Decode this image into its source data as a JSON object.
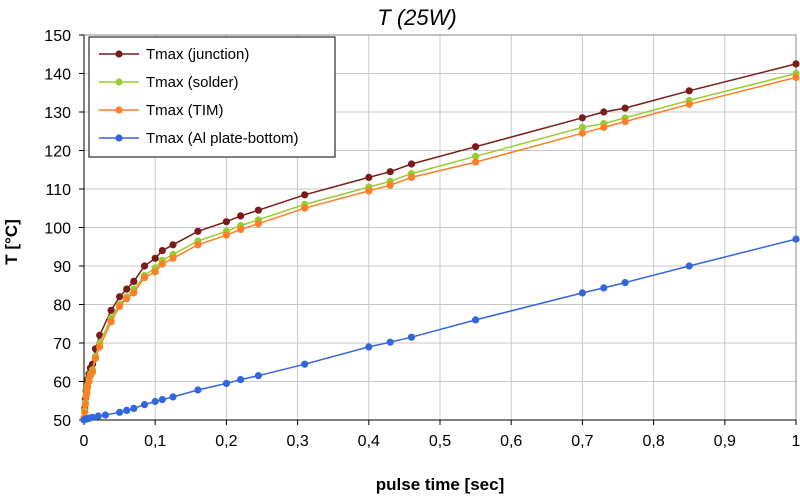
{
  "chart_data": {
    "type": "line",
    "title": "T (25W)",
    "xlabel": "pulse time [sec]",
    "ylabel": "T [°C]",
    "xlim": [
      0,
      1
    ],
    "ylim": [
      50,
      150
    ],
    "x_ticks": [
      0,
      0.1,
      0.2,
      0.3,
      0.4,
      0.5,
      0.6,
      0.7,
      0.8,
      0.9,
      1
    ],
    "x_tick_labels": [
      "0",
      "0,1",
      "0,2",
      "0,3",
      "0,4",
      "0,5",
      "0,6",
      "0,7",
      "0,8",
      "0,9",
      "1"
    ],
    "y_ticks": [
      50,
      60,
      70,
      80,
      90,
      100,
      110,
      120,
      130,
      140,
      150
    ],
    "y_tick_labels": [
      "50",
      "60",
      "70",
      "80",
      "90",
      "100",
      "110",
      "120",
      "130",
      "140",
      "150"
    ],
    "grid": true,
    "legend_position": "top-left",
    "series": [
      {
        "name": "Tmax (junction)",
        "color": "#7b1a1a",
        "points": [
          [
            0,
            50.5
          ],
          [
            0.001,
            53
          ],
          [
            0.002,
            55.5
          ],
          [
            0.003,
            57.5
          ],
          [
            0.004,
            59
          ],
          [
            0.005,
            60.5
          ],
          [
            0.007,
            62
          ],
          [
            0.009,
            63.5
          ],
          [
            0.012,
            64.5
          ],
          [
            0.016,
            68.5
          ],
          [
            0.022,
            72
          ],
          [
            0.038,
            78.5
          ],
          [
            0.05,
            82
          ],
          [
            0.06,
            84
          ],
          [
            0.07,
            86
          ],
          [
            0.085,
            90
          ],
          [
            0.1,
            92
          ],
          [
            0.11,
            94
          ],
          [
            0.125,
            95.5
          ],
          [
            0.16,
            99
          ],
          [
            0.2,
            101.5
          ],
          [
            0.22,
            103
          ],
          [
            0.245,
            104.5
          ],
          [
            0.31,
            108.5
          ],
          [
            0.4,
            113
          ],
          [
            0.43,
            114.5
          ],
          [
            0.46,
            116.5
          ],
          [
            0.55,
            121
          ],
          [
            0.7,
            128.5
          ],
          [
            0.73,
            130
          ],
          [
            0.76,
            131
          ],
          [
            0.85,
            135.5
          ],
          [
            1.0,
            142.5
          ]
        ]
      },
      {
        "name": "Tmax (solder)",
        "color": "#99cc33",
        "points": [
          [
            0,
            50.5
          ],
          [
            0.001,
            52.5
          ],
          [
            0.002,
            54.5
          ],
          [
            0.003,
            56.5
          ],
          [
            0.004,
            57.5
          ],
          [
            0.005,
            59
          ],
          [
            0.007,
            60.5
          ],
          [
            0.009,
            62
          ],
          [
            0.012,
            63
          ],
          [
            0.016,
            66.5
          ],
          [
            0.022,
            70
          ],
          [
            0.038,
            76.5
          ],
          [
            0.05,
            80
          ],
          [
            0.06,
            82
          ],
          [
            0.07,
            84
          ],
          [
            0.085,
            87.5
          ],
          [
            0.1,
            89.5
          ],
          [
            0.11,
            91.5
          ],
          [
            0.125,
            93
          ],
          [
            0.16,
            96.5
          ],
          [
            0.2,
            99
          ],
          [
            0.22,
            100.5
          ],
          [
            0.245,
            102
          ],
          [
            0.31,
            106
          ],
          [
            0.4,
            110.5
          ],
          [
            0.43,
            112
          ],
          [
            0.46,
            114
          ],
          [
            0.55,
            118.5
          ],
          [
            0.7,
            126
          ],
          [
            0.73,
            127
          ],
          [
            0.76,
            128.5
          ],
          [
            0.85,
            133
          ],
          [
            1.0,
            140
          ]
        ]
      },
      {
        "name": "Tmax (TIM)",
        "color": "#ff7f27",
        "points": [
          [
            0,
            50.5
          ],
          [
            0.001,
            52
          ],
          [
            0.002,
            54
          ],
          [
            0.003,
            56
          ],
          [
            0.004,
            57
          ],
          [
            0.005,
            58.5
          ],
          [
            0.007,
            60
          ],
          [
            0.009,
            61.5
          ],
          [
            0.012,
            62.5
          ],
          [
            0.016,
            66
          ],
          [
            0.022,
            69
          ],
          [
            0.038,
            75.5
          ],
          [
            0.05,
            79.5
          ],
          [
            0.06,
            81.5
          ],
          [
            0.07,
            83
          ],
          [
            0.085,
            87
          ],
          [
            0.1,
            88.5
          ],
          [
            0.11,
            90.5
          ],
          [
            0.125,
            92
          ],
          [
            0.16,
            95.5
          ],
          [
            0.2,
            98
          ],
          [
            0.22,
            99.5
          ],
          [
            0.245,
            101
          ],
          [
            0.31,
            105
          ],
          [
            0.4,
            109.5
          ],
          [
            0.43,
            111
          ],
          [
            0.46,
            113
          ],
          [
            0.55,
            117
          ],
          [
            0.7,
            124.5
          ],
          [
            0.73,
            126
          ],
          [
            0.76,
            127.5
          ],
          [
            0.85,
            132
          ],
          [
            1.0,
            139
          ]
        ]
      },
      {
        "name": "Tmax (Al plate-bottom)",
        "color": "#3366dd",
        "points": [
          [
            0,
            50
          ],
          [
            0.002,
            50.2
          ],
          [
            0.004,
            50.3
          ],
          [
            0.006,
            50.4
          ],
          [
            0.008,
            50.5
          ],
          [
            0.012,
            50.7
          ],
          [
            0.02,
            51
          ],
          [
            0.03,
            51.3
          ],
          [
            0.05,
            52
          ],
          [
            0.06,
            52.5
          ],
          [
            0.07,
            53
          ],
          [
            0.085,
            54
          ],
          [
            0.1,
            54.8
          ],
          [
            0.11,
            55.3
          ],
          [
            0.125,
            56
          ],
          [
            0.16,
            57.8
          ],
          [
            0.2,
            59.5
          ],
          [
            0.22,
            60.5
          ],
          [
            0.245,
            61.5
          ],
          [
            0.31,
            64.5
          ],
          [
            0.4,
            69
          ],
          [
            0.43,
            70.2
          ],
          [
            0.46,
            71.5
          ],
          [
            0.55,
            76
          ],
          [
            0.7,
            83
          ],
          [
            0.73,
            84.3
          ],
          [
            0.76,
            85.7
          ],
          [
            0.85,
            90
          ],
          [
            1.0,
            97
          ]
        ]
      }
    ]
  }
}
